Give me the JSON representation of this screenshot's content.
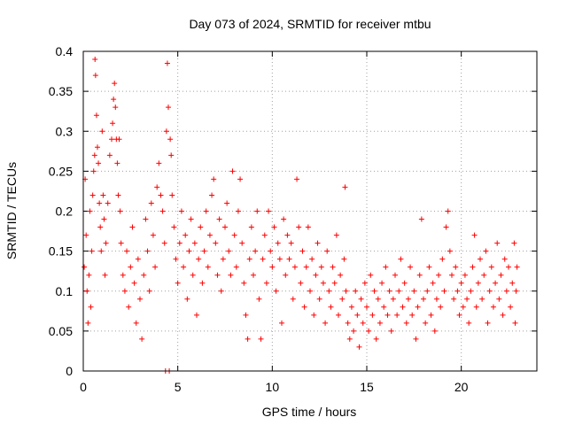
{
  "chart_data": {
    "type": "scatter",
    "title": "Day 073 of 2024, SRMTID for receiver mtbu",
    "xlabel": "GPS time / hours",
    "ylabel": "SRMTID / TECUs",
    "xlim": [
      0,
      24
    ],
    "ylim": [
      0,
      0.4
    ],
    "x_ticks": [
      0,
      5,
      10,
      15,
      20
    ],
    "x_tick_labels": [
      "0",
      "5",
      "10",
      "15",
      "20"
    ],
    "y_ticks": [
      0,
      0.05,
      0.1,
      0.15,
      0.2,
      0.25,
      0.3,
      0.35,
      0.4
    ],
    "y_tick_labels": [
      "0",
      "0.05",
      "0.1",
      "0.15",
      "0.2",
      "0.25",
      "0.3",
      "0.35",
      "0.4"
    ],
    "grid": true,
    "marker": "+",
    "color": "#ff0000",
    "series": [
      {
        "name": "SRMTID",
        "points": [
          [
            0.05,
            0.13
          ],
          [
            0.1,
            0.24
          ],
          [
            0.15,
            0.17
          ],
          [
            0.2,
            0.1
          ],
          [
            0.25,
            0.06
          ],
          [
            0.3,
            0.12
          ],
          [
            0.35,
            0.2
          ],
          [
            0.4,
            0.08
          ],
          [
            0.45,
            0.15
          ],
          [
            0.5,
            0.22
          ],
          [
            0.55,
            0.25
          ],
          [
            0.6,
            0.27
          ],
          [
            0.62,
            0.39
          ],
          [
            0.65,
            0.37
          ],
          [
            0.7,
            0.32
          ],
          [
            0.75,
            0.28
          ],
          [
            0.8,
            0.26
          ],
          [
            0.85,
            0.21
          ],
          [
            0.9,
            0.18
          ],
          [
            0.95,
            0.15
          ],
          [
            1.0,
            0.3
          ],
          [
            1.05,
            0.22
          ],
          [
            1.1,
            0.19
          ],
          [
            1.15,
            0.12
          ],
          [
            1.2,
            0.16
          ],
          [
            1.3,
            0.21
          ],
          [
            1.4,
            0.27
          ],
          [
            1.5,
            0.29
          ],
          [
            1.55,
            0.31
          ],
          [
            1.6,
            0.34
          ],
          [
            1.65,
            0.36
          ],
          [
            1.7,
            0.33
          ],
          [
            1.75,
            0.29
          ],
          [
            1.8,
            0.26
          ],
          [
            1.85,
            0.22
          ],
          [
            1.9,
            0.29
          ],
          [
            1.95,
            0.2
          ],
          [
            2.0,
            0.16
          ],
          [
            2.1,
            0.12
          ],
          [
            2.2,
            0.1
          ],
          [
            2.3,
            0.15
          ],
          [
            2.4,
            0.08
          ],
          [
            2.5,
            0.13
          ],
          [
            2.6,
            0.18
          ],
          [
            2.7,
            0.11
          ],
          [
            2.8,
            0.06
          ],
          [
            2.9,
            0.14
          ],
          [
            3.0,
            0.09
          ],
          [
            3.1,
            0.04
          ],
          [
            3.2,
            0.12
          ],
          [
            3.3,
            0.19
          ],
          [
            3.4,
            0.15
          ],
          [
            3.5,
            0.1
          ],
          [
            3.6,
            0.21
          ],
          [
            3.7,
            0.17
          ],
          [
            3.8,
            0.13
          ],
          [
            3.9,
            0.23
          ],
          [
            4.0,
            0.26
          ],
          [
            4.1,
            0.22
          ],
          [
            4.2,
            0.2
          ],
          [
            4.3,
            0.16
          ],
          [
            4.35,
            0.0
          ],
          [
            4.4,
            0.3
          ],
          [
            4.45,
            0.385
          ],
          [
            4.5,
            0.33
          ],
          [
            4.55,
            0.0
          ],
          [
            4.6,
            0.29
          ],
          [
            4.65,
            0.27
          ],
          [
            4.7,
            0.22
          ],
          [
            4.8,
            0.18
          ],
          [
            4.9,
            0.14
          ],
          [
            5.0,
            0.11
          ],
          [
            5.1,
            0.16
          ],
          [
            5.2,
            0.2
          ],
          [
            5.3,
            0.13
          ],
          [
            5.4,
            0.17
          ],
          [
            5.5,
            0.09
          ],
          [
            5.6,
            0.15
          ],
          [
            5.7,
            0.19
          ],
          [
            5.8,
            0.12
          ],
          [
            5.9,
            0.16
          ],
          [
            6.0,
            0.07
          ],
          [
            6.1,
            0.14
          ],
          [
            6.2,
            0.18
          ],
          [
            6.3,
            0.11
          ],
          [
            6.4,
            0.15
          ],
          [
            6.5,
            0.2
          ],
          [
            6.6,
            0.13
          ],
          [
            6.7,
            0.17
          ],
          [
            6.8,
            0.22
          ],
          [
            6.9,
            0.24
          ],
          [
            7.0,
            0.16
          ],
          [
            7.1,
            0.12
          ],
          [
            7.2,
            0.19
          ],
          [
            7.3,
            0.1
          ],
          [
            7.4,
            0.14
          ],
          [
            7.5,
            0.18
          ],
          [
            7.6,
            0.21
          ],
          [
            7.7,
            0.15
          ],
          [
            7.8,
            0.12
          ],
          [
            7.9,
            0.25
          ],
          [
            8.0,
            0.17
          ],
          [
            8.1,
            0.13
          ],
          [
            8.2,
            0.2
          ],
          [
            8.3,
            0.24
          ],
          [
            8.4,
            0.16
          ],
          [
            8.5,
            0.11
          ],
          [
            8.6,
            0.07
          ],
          [
            8.7,
            0.04
          ],
          [
            8.8,
            0.14
          ],
          [
            8.9,
            0.18
          ],
          [
            9.0,
            0.12
          ],
          [
            9.1,
            0.15
          ],
          [
            9.2,
            0.2
          ],
          [
            9.3,
            0.09
          ],
          [
            9.4,
            0.04
          ],
          [
            9.5,
            0.14
          ],
          [
            9.6,
            0.17
          ],
          [
            9.7,
            0.11
          ],
          [
            9.8,
            0.2
          ],
          [
            9.9,
            0.15
          ],
          [
            10.0,
            0.13
          ],
          [
            10.1,
            0.18
          ],
          [
            10.2,
            0.1
          ],
          [
            10.3,
            0.16
          ],
          [
            10.4,
            0.14
          ],
          [
            10.5,
            0.06
          ],
          [
            10.6,
            0.19
          ],
          [
            10.7,
            0.12
          ],
          [
            10.8,
            0.17
          ],
          [
            10.9,
            0.14
          ],
          [
            11.0,
            0.16
          ],
          [
            11.1,
            0.09
          ],
          [
            11.2,
            0.13
          ],
          [
            11.3,
            0.24
          ],
          [
            11.4,
            0.18
          ],
          [
            11.5,
            0.11
          ],
          [
            11.6,
            0.15
          ],
          [
            11.7,
            0.08
          ],
          [
            11.8,
            0.13
          ],
          [
            11.9,
            0.18
          ],
          [
            12.0,
            0.1
          ],
          [
            12.1,
            0.14
          ],
          [
            12.2,
            0.07
          ],
          [
            12.3,
            0.12
          ],
          [
            12.4,
            0.16
          ],
          [
            12.5,
            0.09
          ],
          [
            12.6,
            0.13
          ],
          [
            12.7,
            0.11
          ],
          [
            12.8,
            0.06
          ],
          [
            12.9,
            0.15
          ],
          [
            13.0,
            0.1
          ],
          [
            13.1,
            0.08
          ],
          [
            13.2,
            0.13
          ],
          [
            13.3,
            0.11
          ],
          [
            13.4,
            0.17
          ],
          [
            13.5,
            0.07
          ],
          [
            13.6,
            0.12
          ],
          [
            13.7,
            0.09
          ],
          [
            13.8,
            0.14
          ],
          [
            13.85,
            0.23
          ],
          [
            13.9,
            0.1
          ],
          [
            14.0,
            0.06
          ],
          [
            14.1,
            0.04
          ],
          [
            14.2,
            0.08
          ],
          [
            14.3,
            0.05
          ],
          [
            14.4,
            0.1
          ],
          [
            14.5,
            0.07
          ],
          [
            14.6,
            0.03
          ],
          [
            14.7,
            0.09
          ],
          [
            14.8,
            0.06
          ],
          [
            14.9,
            0.11
          ],
          [
            15.0,
            0.08
          ],
          [
            15.1,
            0.05
          ],
          [
            15.2,
            0.12
          ],
          [
            15.3,
            0.07
          ],
          [
            15.4,
            0.1
          ],
          [
            15.5,
            0.04
          ],
          [
            15.6,
            0.09
          ],
          [
            15.7,
            0.06
          ],
          [
            15.8,
            0.11
          ],
          [
            15.9,
            0.08
          ],
          [
            16.0,
            0.13
          ],
          [
            16.1,
            0.07
          ],
          [
            16.2,
            0.1
          ],
          [
            16.3,
            0.05
          ],
          [
            16.4,
            0.09
          ],
          [
            16.5,
            0.12
          ],
          [
            16.6,
            0.07
          ],
          [
            16.7,
            0.1
          ],
          [
            16.8,
            0.14
          ],
          [
            16.9,
            0.08
          ],
          [
            17.0,
            0.11
          ],
          [
            17.1,
            0.06
          ],
          [
            17.2,
            0.09
          ],
          [
            17.3,
            0.13
          ],
          [
            17.4,
            0.07
          ],
          [
            17.5,
            0.1
          ],
          [
            17.6,
            0.04
          ],
          [
            17.7,
            0.08
          ],
          [
            17.8,
            0.12
          ],
          [
            17.9,
            0.19
          ],
          [
            18.0,
            0.09
          ],
          [
            18.1,
            0.06
          ],
          [
            18.2,
            0.1
          ],
          [
            18.3,
            0.13
          ],
          [
            18.4,
            0.07
          ],
          [
            18.5,
            0.11
          ],
          [
            18.6,
            0.05
          ],
          [
            18.7,
            0.09
          ],
          [
            18.8,
            0.12
          ],
          [
            18.9,
            0.08
          ],
          [
            19.0,
            0.14
          ],
          [
            19.1,
            0.1
          ],
          [
            19.2,
            0.18
          ],
          [
            19.3,
            0.2
          ],
          [
            19.4,
            0.15
          ],
          [
            19.5,
            0.12
          ],
          [
            19.6,
            0.09
          ],
          [
            19.7,
            0.13
          ],
          [
            19.8,
            0.1
          ],
          [
            19.9,
            0.07
          ],
          [
            20.0,
            0.11
          ],
          [
            20.1,
            0.08
          ],
          [
            20.2,
            0.12
          ],
          [
            20.3,
            0.09
          ],
          [
            20.4,
            0.06
          ],
          [
            20.5,
            0.1
          ],
          [
            20.6,
            0.13
          ],
          [
            20.7,
            0.17
          ],
          [
            20.8,
            0.08
          ],
          [
            20.9,
            0.11
          ],
          [
            21.0,
            0.14
          ],
          [
            21.1,
            0.09
          ],
          [
            21.2,
            0.12
          ],
          [
            21.3,
            0.15
          ],
          [
            21.4,
            0.06
          ],
          [
            21.5,
            0.1
          ],
          [
            21.6,
            0.13
          ],
          [
            21.7,
            0.08
          ],
          [
            21.8,
            0.11
          ],
          [
            21.9,
            0.16
          ],
          [
            22.0,
            0.09
          ],
          [
            22.1,
            0.12
          ],
          [
            22.2,
            0.07
          ],
          [
            22.3,
            0.14
          ],
          [
            22.4,
            0.1
          ],
          [
            22.5,
            0.13
          ],
          [
            22.6,
            0.08
          ],
          [
            22.7,
            0.11
          ],
          [
            22.8,
            0.16
          ],
          [
            22.85,
            0.06
          ],
          [
            22.9,
            0.1
          ],
          [
            22.95,
            0.13
          ]
        ]
      }
    ]
  }
}
